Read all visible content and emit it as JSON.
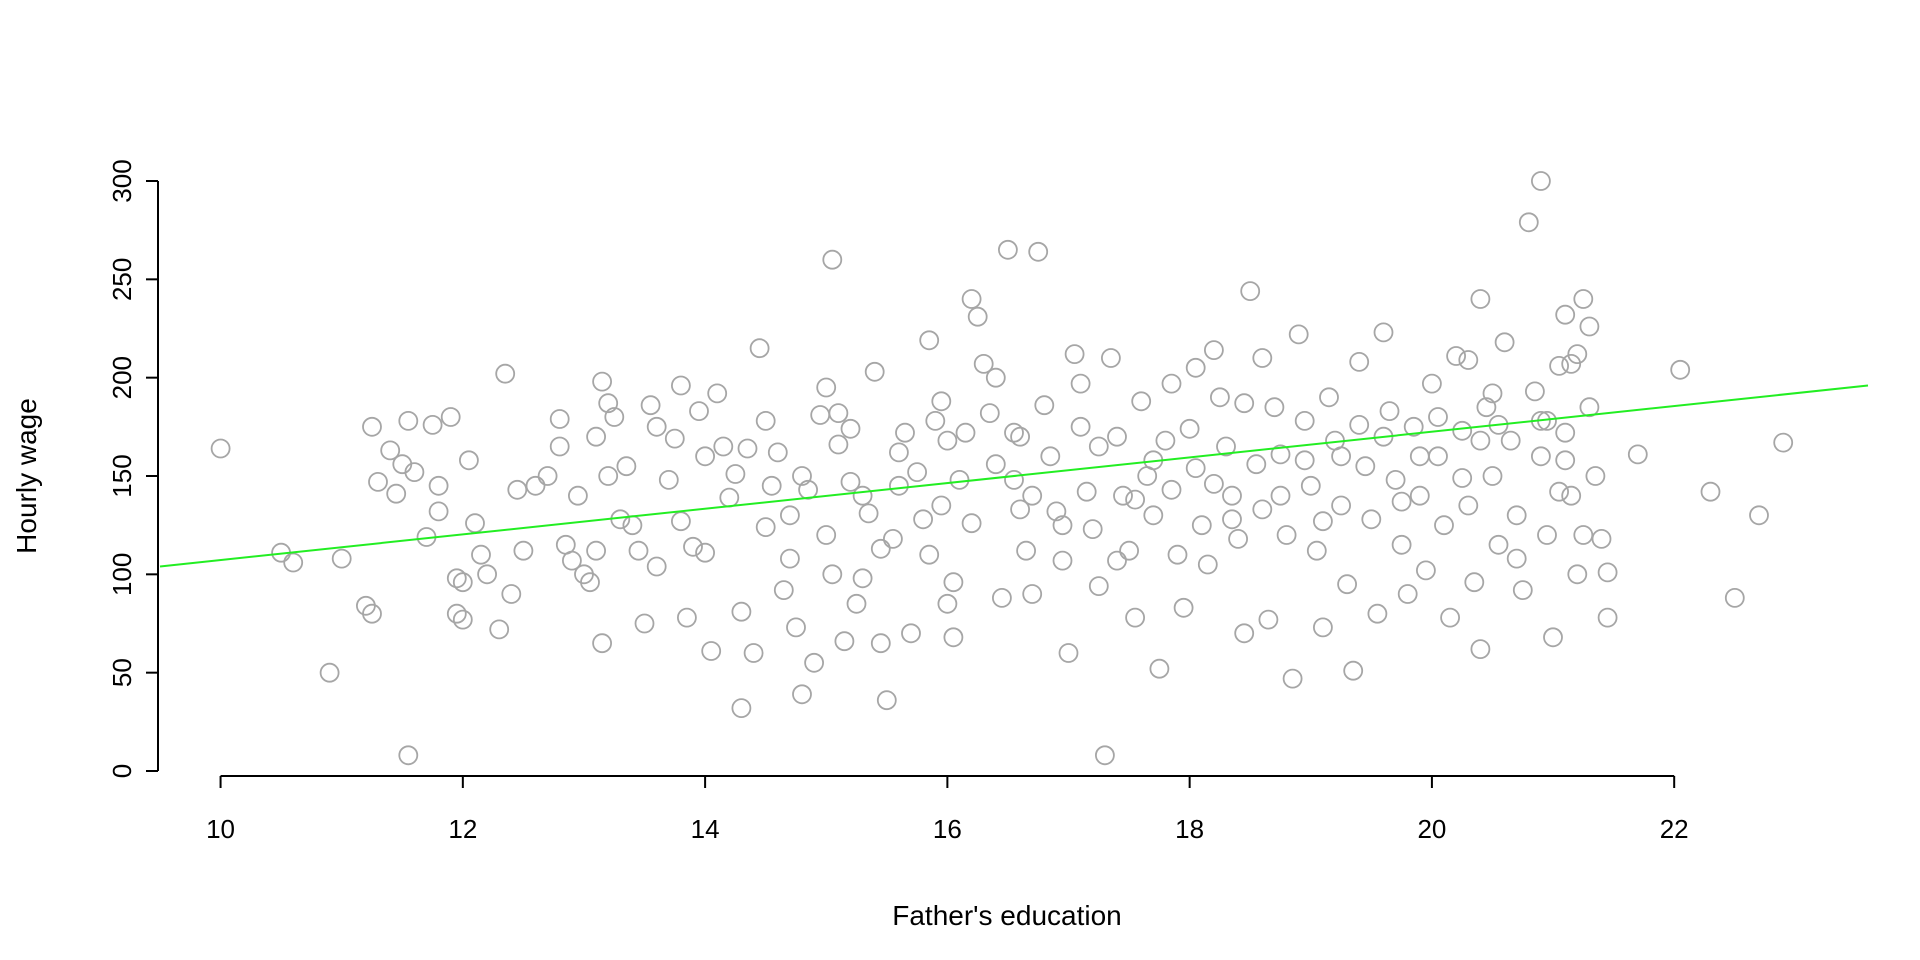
{
  "chart_data": {
    "type": "scatter",
    "title": "",
    "xlabel": "Father's education",
    "ylabel": "Hourly wage",
    "xlim": [
      9.5,
      23.6
    ],
    "ylim": [
      0,
      300
    ],
    "xticks": [
      10,
      12,
      14,
      16,
      18,
      20,
      22
    ],
    "yticks": [
      0,
      50,
      100,
      150,
      200,
      250,
      300
    ],
    "grid": false,
    "legend": "none",
    "point_color": "#a6a6a6",
    "line_color": "#22ee22",
    "regression_line": {
      "x": [
        9.5,
        23.6
      ],
      "y": [
        104,
        196
      ]
    },
    "series": [
      {
        "points": [
          [
            10.0,
            164
          ],
          [
            10.5,
            111
          ],
          [
            10.6,
            106
          ],
          [
            10.9,
            50
          ],
          [
            11.0,
            108
          ],
          [
            11.2,
            84
          ],
          [
            11.25,
            80
          ],
          [
            11.25,
            175
          ],
          [
            11.3,
            147
          ],
          [
            11.4,
            163
          ],
          [
            11.45,
            141
          ],
          [
            11.5,
            156
          ],
          [
            11.55,
            178
          ],
          [
            11.55,
            8
          ],
          [
            11.6,
            152
          ],
          [
            11.7,
            119
          ],
          [
            11.75,
            176
          ],
          [
            11.8,
            145
          ],
          [
            11.8,
            132
          ],
          [
            11.9,
            180
          ],
          [
            11.95,
            98
          ],
          [
            11.95,
            80
          ],
          [
            12.0,
            96
          ],
          [
            12.0,
            77
          ],
          [
            12.05,
            158
          ],
          [
            12.1,
            126
          ],
          [
            12.15,
            110
          ],
          [
            12.2,
            100
          ],
          [
            12.3,
            72
          ],
          [
            12.35,
            202
          ],
          [
            12.4,
            90
          ],
          [
            12.45,
            143
          ],
          [
            12.5,
            112
          ],
          [
            12.6,
            145
          ],
          [
            12.7,
            150
          ],
          [
            12.8,
            165
          ],
          [
            12.8,
            179
          ],
          [
            12.85,
            115
          ],
          [
            12.9,
            107
          ],
          [
            12.95,
            140
          ],
          [
            13.0,
            100
          ],
          [
            13.05,
            96
          ],
          [
            13.1,
            112
          ],
          [
            13.1,
            170
          ],
          [
            13.15,
            198
          ],
          [
            13.15,
            65
          ],
          [
            13.2,
            187
          ],
          [
            13.2,
            150
          ],
          [
            13.25,
            180
          ],
          [
            13.3,
            128
          ],
          [
            13.35,
            155
          ],
          [
            13.4,
            125
          ],
          [
            13.45,
            112
          ],
          [
            13.5,
            75
          ],
          [
            13.55,
            186
          ],
          [
            13.6,
            175
          ],
          [
            13.6,
            104
          ],
          [
            13.7,
            148
          ],
          [
            13.75,
            169
          ],
          [
            13.8,
            196
          ],
          [
            13.8,
            127
          ],
          [
            13.85,
            78
          ],
          [
            13.9,
            114
          ],
          [
            13.95,
            183
          ],
          [
            14.0,
            160
          ],
          [
            14.0,
            111
          ],
          [
            14.05,
            61
          ],
          [
            14.1,
            192
          ],
          [
            14.15,
            165
          ],
          [
            14.2,
            139
          ],
          [
            14.25,
            151
          ],
          [
            14.3,
            81
          ],
          [
            14.3,
            32
          ],
          [
            14.35,
            164
          ],
          [
            14.4,
            60
          ],
          [
            14.45,
            215
          ],
          [
            14.5,
            178
          ],
          [
            14.5,
            124
          ],
          [
            14.55,
            145
          ],
          [
            14.6,
            162
          ],
          [
            14.65,
            92
          ],
          [
            14.7,
            130
          ],
          [
            14.7,
            108
          ],
          [
            14.75,
            73
          ],
          [
            14.8,
            150
          ],
          [
            14.8,
            39
          ],
          [
            14.85,
            143
          ],
          [
            14.9,
            55
          ],
          [
            14.95,
            181
          ],
          [
            15.0,
            195
          ],
          [
            15.0,
            120
          ],
          [
            15.05,
            100
          ],
          [
            15.1,
            166
          ],
          [
            15.15,
            66
          ],
          [
            15.2,
            147
          ],
          [
            15.2,
            174
          ],
          [
            15.25,
            85
          ],
          [
            15.3,
            98
          ],
          [
            15.35,
            131
          ],
          [
            15.4,
            203
          ],
          [
            15.45,
            65
          ],
          [
            15.5,
            36
          ],
          [
            15.55,
            118
          ],
          [
            15.6,
            145
          ],
          [
            15.6,
            162
          ],
          [
            15.65,
            172
          ],
          [
            15.7,
            70
          ],
          [
            15.75,
            152
          ],
          [
            15.8,
            128
          ],
          [
            15.85,
            110
          ],
          [
            15.9,
            178
          ],
          [
            15.95,
            135
          ],
          [
            16.0,
            85
          ],
          [
            16.0,
            168
          ],
          [
            16.05,
            68
          ],
          [
            16.1,
            148
          ],
          [
            16.15,
            172
          ],
          [
            16.2,
            126
          ],
          [
            16.25,
            231
          ],
          [
            16.3,
            207
          ],
          [
            16.35,
            182
          ],
          [
            16.4,
            156
          ],
          [
            16.45,
            88
          ],
          [
            16.5,
            265
          ],
          [
            16.55,
            148
          ],
          [
            16.6,
            170
          ],
          [
            16.6,
            133
          ],
          [
            16.65,
            112
          ],
          [
            16.7,
            90
          ],
          [
            16.75,
            264
          ],
          [
            16.8,
            186
          ],
          [
            16.85,
            160
          ],
          [
            16.9,
            132
          ],
          [
            16.95,
            107
          ],
          [
            17.0,
            60
          ],
          [
            17.05,
            212
          ],
          [
            17.1,
            175
          ],
          [
            17.15,
            142
          ],
          [
            17.2,
            123
          ],
          [
            17.25,
            94
          ],
          [
            17.3,
            8
          ],
          [
            17.35,
            210
          ],
          [
            17.4,
            170
          ],
          [
            17.45,
            140
          ],
          [
            17.5,
            112
          ],
          [
            17.55,
            78
          ],
          [
            17.6,
            188
          ],
          [
            17.65,
            150
          ],
          [
            17.7,
            130
          ],
          [
            17.75,
            52
          ],
          [
            17.8,
            168
          ],
          [
            17.85,
            143
          ],
          [
            17.9,
            110
          ],
          [
            17.95,
            83
          ],
          [
            18.0,
            174
          ],
          [
            18.05,
            154
          ],
          [
            18.1,
            125
          ],
          [
            18.15,
            105
          ],
          [
            18.2,
            214
          ],
          [
            18.25,
            190
          ],
          [
            18.3,
            165
          ],
          [
            18.35,
            140
          ],
          [
            18.4,
            118
          ],
          [
            18.45,
            70
          ],
          [
            18.5,
            244
          ],
          [
            18.55,
            156
          ],
          [
            18.6,
            133
          ],
          [
            18.65,
            77
          ],
          [
            18.7,
            185
          ],
          [
            18.75,
            161
          ],
          [
            18.8,
            120
          ],
          [
            18.85,
            47
          ],
          [
            18.9,
            222
          ],
          [
            18.95,
            178
          ],
          [
            19.0,
            145
          ],
          [
            19.05,
            112
          ],
          [
            19.1,
            73
          ],
          [
            19.15,
            190
          ],
          [
            19.2,
            168
          ],
          [
            19.25,
            135
          ],
          [
            19.3,
            95
          ],
          [
            19.35,
            51
          ],
          [
            19.4,
            208
          ],
          [
            19.45,
            155
          ],
          [
            19.5,
            128
          ],
          [
            19.55,
            80
          ],
          [
            19.6,
            223
          ],
          [
            19.65,
            183
          ],
          [
            19.7,
            148
          ],
          [
            19.75,
            115
          ],
          [
            19.8,
            90
          ],
          [
            19.85,
            175
          ],
          [
            19.9,
            140
          ],
          [
            19.95,
            102
          ],
          [
            20.0,
            197
          ],
          [
            20.05,
            160
          ],
          [
            20.1,
            125
          ],
          [
            20.15,
            78
          ],
          [
            20.2,
            211
          ],
          [
            20.25,
            173
          ],
          [
            20.3,
            135
          ],
          [
            20.35,
            96
          ],
          [
            20.4,
            62
          ],
          [
            20.45,
            185
          ],
          [
            20.5,
            150
          ],
          [
            20.55,
            115
          ],
          [
            20.6,
            218
          ],
          [
            20.65,
            168
          ],
          [
            20.7,
            130
          ],
          [
            20.75,
            92
          ],
          [
            20.8,
            279
          ],
          [
            20.85,
            193
          ],
          [
            20.9,
            160
          ],
          [
            20.95,
            120
          ],
          [
            21.0,
            68
          ],
          [
            21.05,
            206
          ],
          [
            21.1,
            172
          ],
          [
            21.15,
            140
          ],
          [
            21.2,
            100
          ],
          [
            21.25,
            240
          ],
          [
            21.3,
            185
          ],
          [
            21.35,
            150
          ],
          [
            21.4,
            118
          ],
          [
            21.45,
            78
          ],
          [
            15.05,
            260
          ],
          [
            15.1,
            182
          ],
          [
            15.3,
            140
          ],
          [
            15.45,
            113
          ],
          [
            15.85,
            219
          ],
          [
            15.95,
            188
          ],
          [
            16.05,
            96
          ],
          [
            16.2,
            240
          ],
          [
            16.4,
            200
          ],
          [
            16.55,
            172
          ],
          [
            16.7,
            140
          ],
          [
            16.95,
            125
          ],
          [
            17.1,
            197
          ],
          [
            17.25,
            165
          ],
          [
            17.4,
            107
          ],
          [
            17.55,
            138
          ],
          [
            17.7,
            158
          ],
          [
            17.85,
            197
          ],
          [
            18.05,
            205
          ],
          [
            18.2,
            146
          ],
          [
            18.35,
            128
          ],
          [
            18.45,
            187
          ],
          [
            18.6,
            210
          ],
          [
            18.75,
            140
          ],
          [
            18.95,
            158
          ],
          [
            19.1,
            127
          ],
          [
            19.25,
            160
          ],
          [
            19.4,
            176
          ],
          [
            19.6,
            170
          ],
          [
            19.75,
            137
          ],
          [
            19.9,
            160
          ],
          [
            20.05,
            180
          ],
          [
            20.25,
            149
          ],
          [
            20.4,
            168
          ],
          [
            20.55,
            176
          ],
          [
            20.7,
            108
          ],
          [
            20.9,
            178
          ],
          [
            21.05,
            142
          ],
          [
            21.1,
            158
          ],
          [
            21.2,
            212
          ],
          [
            21.3,
            226
          ],
          [
            21.45,
            101
          ],
          [
            21.7,
            161
          ],
          [
            22.05,
            204
          ],
          [
            22.3,
            142
          ],
          [
            22.5,
            88
          ],
          [
            22.7,
            130
          ],
          [
            22.9,
            167
          ],
          [
            20.9,
            300
          ],
          [
            20.95,
            178
          ],
          [
            21.1,
            232
          ],
          [
            21.15,
            207
          ],
          [
            21.25,
            120
          ],
          [
            20.5,
            192
          ],
          [
            20.4,
            240
          ],
          [
            20.3,
            209
          ]
        ]
      }
    ]
  }
}
